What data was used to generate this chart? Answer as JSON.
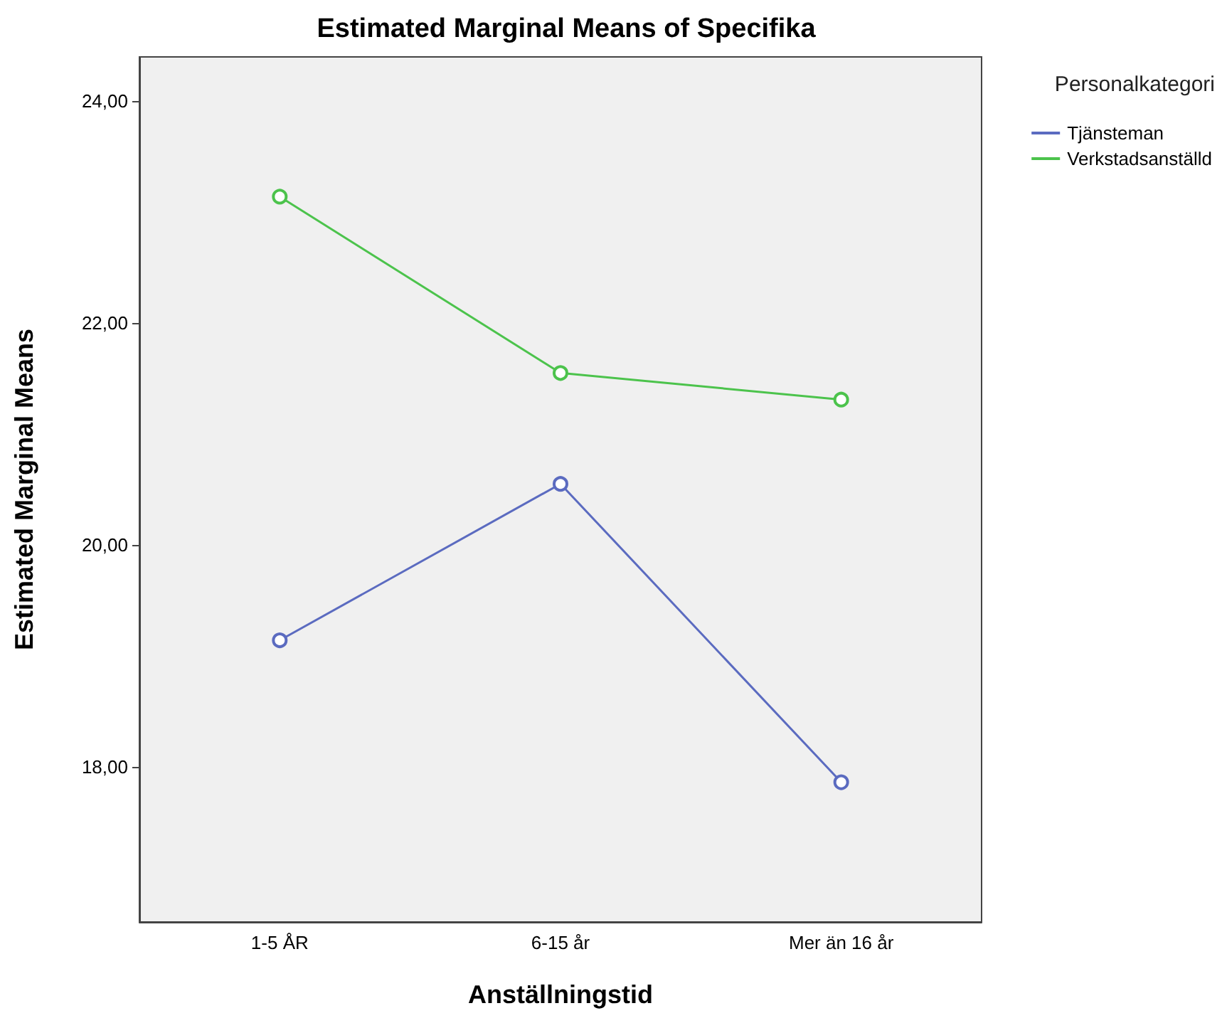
{
  "chart_data": {
    "type": "line",
    "title": "Estimated Marginal Means of Specifika",
    "xlabel": "Anställningstid",
    "ylabel": "Estimated Marginal Means",
    "legend_title": "Personalkategori",
    "categories": [
      "1-5 ÅR",
      "6-15 år",
      "Mer än 16 år"
    ],
    "series": [
      {
        "name": "Tjänsteman",
        "color": "#5b6bc0",
        "values": [
          19.14,
          20.55,
          17.86
        ]
      },
      {
        "name": "Verkstadsanställd",
        "color": "#4cc34c",
        "values": [
          23.14,
          21.55,
          21.31
        ]
      }
    ],
    "ylim": [
      16.6,
      24.4
    ],
    "yticks": [
      {
        "value": 18,
        "label": "18,00"
      },
      {
        "value": 20,
        "label": "20,00"
      },
      {
        "value": 22,
        "label": "22,00"
      },
      {
        "value": 24,
        "label": "24,00"
      }
    ],
    "marker": "circle",
    "legend": "top right",
    "grid": false
  }
}
